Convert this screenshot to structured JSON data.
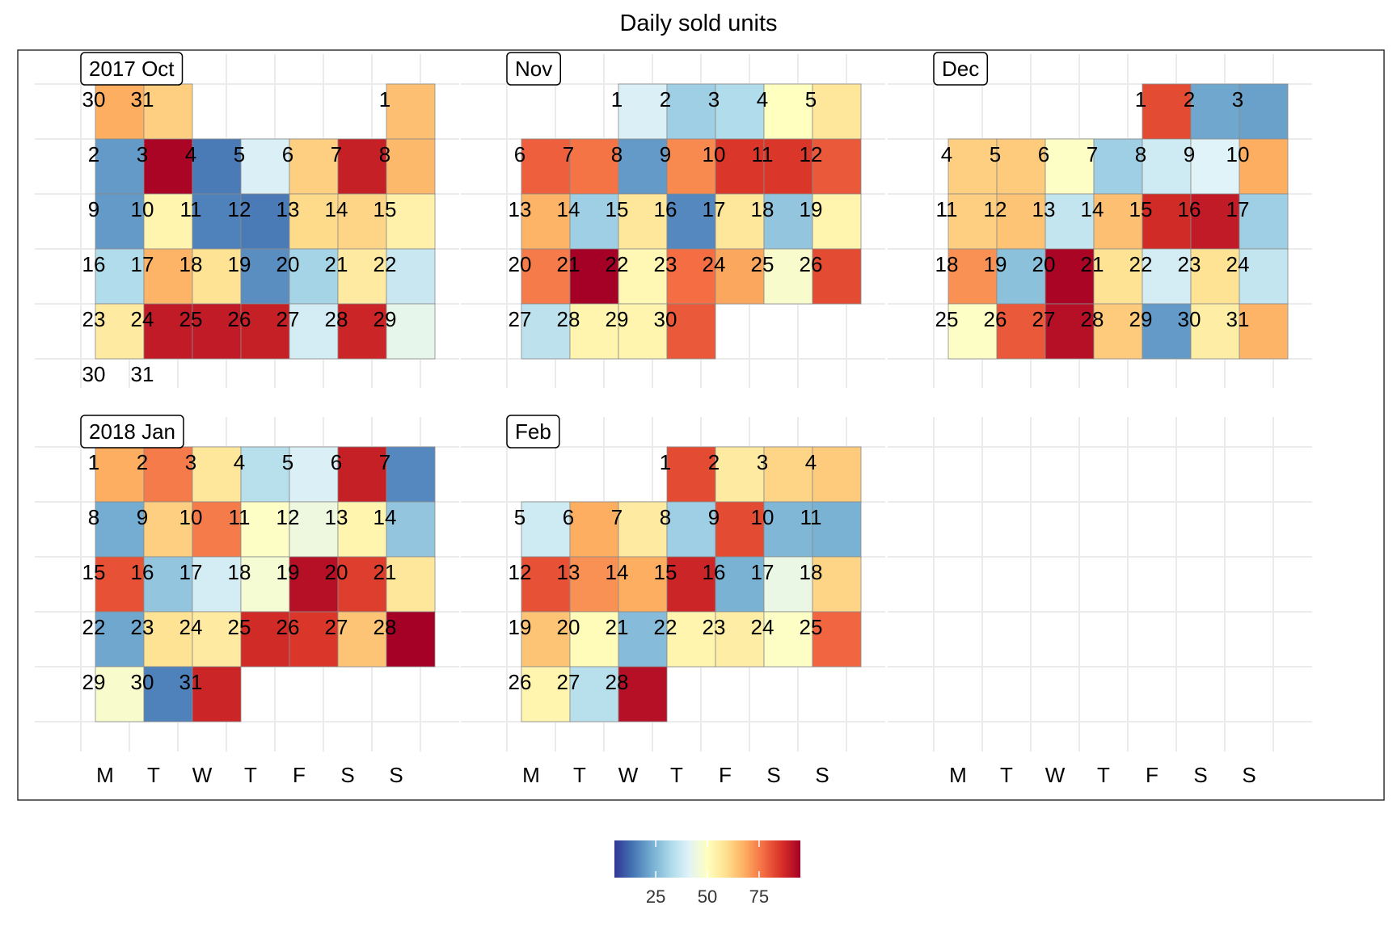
{
  "chart_data": {
    "type": "heatmap",
    "title": "Daily sold units",
    "weekday_labels": [
      "M",
      "T",
      "W",
      "T",
      "F",
      "S",
      "S"
    ],
    "color_scale": {
      "palette": [
        "#313695",
        "#4575b4",
        "#74add1",
        "#abd9e9",
        "#e0f3f8",
        "#ffffbf",
        "#fee090",
        "#fdae61",
        "#f46d43",
        "#d73027",
        "#a50026"
      ],
      "domain": [
        5,
        95
      ],
      "legend_ticks": [
        25,
        50,
        75
      ],
      "legend_tick_labels": [
        "25",
        "50",
        "75"
      ]
    },
    "months": [
      {
        "label": "2017 Oct",
        "first_weekday": 6,
        "leading_days": [
          30,
          31
        ],
        "leading_values": [
          68,
          62
        ],
        "days": 31,
        "values": [
          65,
          20,
          94,
          15,
          40,
          62,
          89,
          66,
          20,
          53,
          16,
          15,
          60,
          61,
          54,
          33,
          67,
          58,
          18,
          31,
          56,
          37,
          56,
          90,
          90,
          89,
          39,
          88,
          43,
          null,
          null
        ]
      },
      {
        "label": "Nov",
        "first_weekday": 2,
        "days": 30,
        "values": [
          40,
          30,
          33,
          50,
          57,
          79,
          76,
          20,
          73,
          85,
          85,
          80,
          67,
          30,
          57,
          17,
          57,
          28,
          53,
          75,
          95,
          52,
          77,
          69,
          48,
          82,
          35,
          53,
          53,
          80
        ]
      },
      {
        "label": "Dec",
        "first_weekday": 4,
        "days": 31,
        "values": [
          82,
          22,
          21,
          62,
          63,
          49,
          30,
          38,
          41,
          68,
          62,
          64,
          36,
          65,
          87,
          90,
          30,
          72,
          27,
          94,
          58,
          39,
          58,
          36,
          49,
          80,
          92,
          63,
          20,
          55,
          67
        ]
      },
      {
        "label": "2018 Jan",
        "first_weekday": 0,
        "days": 31,
        "values": [
          68,
          75,
          57,
          34,
          40,
          89,
          17,
          23,
          62,
          75,
          49,
          45,
          53,
          28,
          81,
          28,
          39,
          47,
          92,
          84,
          57,
          22,
          58,
          56,
          87,
          85,
          64,
          96,
          48,
          16,
          88
        ]
      },
      {
        "label": "Feb",
        "first_weekday": 3,
        "days": 28,
        "values": [
          82,
          56,
          61,
          63,
          38,
          68,
          56,
          30,
          82,
          25,
          24,
          81,
          72,
          68,
          88,
          24,
          44,
          61,
          64,
          51,
          26,
          53,
          55,
          49,
          78,
          53,
          34,
          92
        ]
      }
    ]
  }
}
